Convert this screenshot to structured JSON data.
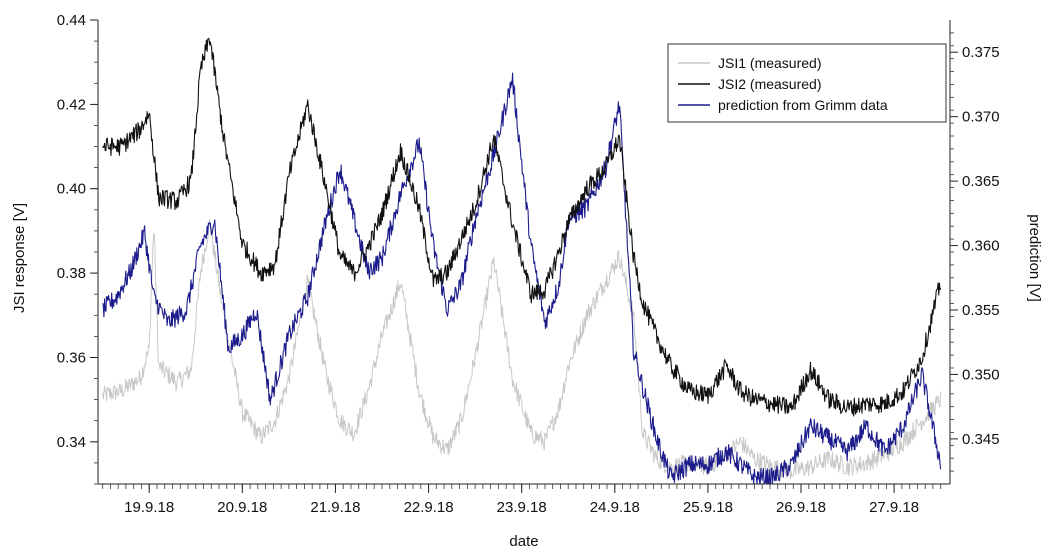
{
  "chart_data": {
    "type": "line",
    "title": "",
    "xlabel": "date",
    "ylabel_left": "JSI response [V]",
    "ylabel_right": "prediction [V]",
    "x_range_days": [
      -0.05,
      9.1
    ],
    "ylim_left": [
      0.33,
      0.44
    ],
    "ylim_right": [
      0.3415,
      0.3775
    ],
    "x_tick_labels": [
      "19.9.18",
      "20.9.18",
      "21.9.18",
      "22.9.18",
      "23.9.18",
      "24.9.18",
      "25.9.18",
      "26.9.18",
      "27.9.18"
    ],
    "y_ticks_left": [
      "0.34",
      "0.36",
      "0.38",
      "0.40",
      "0.42",
      "0.44"
    ],
    "y_ticks_right": [
      "0.345",
      "0.350",
      "0.355",
      "0.360",
      "0.365",
      "0.370",
      "0.375"
    ],
    "legend_position": "top-right",
    "grid": false,
    "series": [
      {
        "name": "JSI1 (measured)",
        "axis": "left",
        "color": "#c8c8c8",
        "x": [
          0.0,
          0.2,
          0.4,
          0.5,
          0.55,
          0.6,
          0.8,
          0.95,
          1.05,
          1.15,
          1.3,
          1.5,
          1.7,
          1.85,
          2.0,
          2.2,
          2.4,
          2.55,
          2.7,
          2.85,
          3.0,
          3.2,
          3.4,
          3.55,
          3.7,
          3.85,
          4.0,
          4.2,
          4.4,
          4.6,
          4.75,
          4.9,
          5.0,
          5.2,
          5.4,
          5.55,
          5.7,
          5.8,
          5.95,
          6.1,
          6.3,
          6.5,
          6.7,
          6.85,
          7.0,
          7.2,
          7.4,
          7.6,
          7.8,
          8.0,
          8.2,
          8.4,
          8.6,
          8.8,
          9.0
        ],
        "y": [
          0.351,
          0.352,
          0.355,
          0.362,
          0.392,
          0.358,
          0.354,
          0.357,
          0.38,
          0.392,
          0.37,
          0.347,
          0.341,
          0.345,
          0.355,
          0.378,
          0.356,
          0.345,
          0.342,
          0.352,
          0.365,
          0.378,
          0.352,
          0.341,
          0.338,
          0.345,
          0.36,
          0.383,
          0.355,
          0.342,
          0.34,
          0.348,
          0.358,
          0.37,
          0.378,
          0.384,
          0.37,
          0.342,
          0.336,
          0.334,
          0.335,
          0.334,
          0.337,
          0.34,
          0.336,
          0.334,
          0.333,
          0.334,
          0.336,
          0.334,
          0.335,
          0.337,
          0.34,
          0.345,
          0.35
        ]
      },
      {
        "name": "JSI2 (measured)",
        "axis": "left",
        "color": "#111111",
        "x": [
          0.0,
          0.2,
          0.4,
          0.5,
          0.6,
          0.8,
          0.95,
          1.05,
          1.15,
          1.3,
          1.5,
          1.7,
          1.85,
          2.0,
          2.2,
          2.4,
          2.55,
          2.7,
          2.85,
          3.0,
          3.2,
          3.4,
          3.55,
          3.7,
          3.85,
          4.0,
          4.2,
          4.4,
          4.6,
          4.75,
          4.9,
          5.0,
          5.2,
          5.4,
          5.55,
          5.7,
          5.8,
          5.95,
          6.1,
          6.3,
          6.5,
          6.7,
          6.85,
          7.0,
          7.2,
          7.4,
          7.6,
          7.8,
          8.0,
          8.2,
          8.4,
          8.6,
          8.8,
          9.0
        ],
        "y": [
          0.41,
          0.41,
          0.414,
          0.418,
          0.398,
          0.397,
          0.402,
          0.428,
          0.436,
          0.412,
          0.387,
          0.38,
          0.382,
          0.403,
          0.42,
          0.4,
          0.384,
          0.38,
          0.386,
          0.394,
          0.409,
          0.395,
          0.378,
          0.38,
          0.388,
          0.396,
          0.412,
          0.392,
          0.375,
          0.376,
          0.385,
          0.392,
          0.4,
          0.405,
          0.412,
          0.384,
          0.373,
          0.365,
          0.358,
          0.352,
          0.351,
          0.358,
          0.352,
          0.35,
          0.349,
          0.348,
          0.357,
          0.35,
          0.348,
          0.349,
          0.349,
          0.352,
          0.36,
          0.378
        ]
      },
      {
        "name": "prediction from Grimm data",
        "axis": "right",
        "color": "#1c1c8c",
        "x": [
          0.0,
          0.15,
          0.3,
          0.45,
          0.55,
          0.7,
          0.9,
          1.05,
          1.2,
          1.35,
          1.5,
          1.65,
          1.8,
          2.0,
          2.2,
          2.4,
          2.55,
          2.7,
          2.85,
          3.0,
          3.2,
          3.4,
          3.55,
          3.7,
          3.85,
          4.0,
          4.2,
          4.4,
          4.6,
          4.75,
          4.9,
          5.0,
          5.2,
          5.4,
          5.55,
          5.7,
          5.8,
          5.95,
          6.1,
          6.3,
          6.5,
          6.7,
          6.85,
          7.0,
          7.2,
          7.4,
          7.6,
          7.8,
          8.0,
          8.2,
          8.4,
          8.6,
          8.8,
          9.0
        ],
        "y": [
          0.355,
          0.356,
          0.358,
          0.361,
          0.356,
          0.354,
          0.355,
          0.36,
          0.362,
          0.352,
          0.353,
          0.355,
          0.348,
          0.353,
          0.356,
          0.362,
          0.366,
          0.362,
          0.358,
          0.359,
          0.364,
          0.368,
          0.36,
          0.355,
          0.357,
          0.362,
          0.367,
          0.373,
          0.36,
          0.354,
          0.357,
          0.362,
          0.363,
          0.366,
          0.371,
          0.352,
          0.349,
          0.345,
          0.342,
          0.343,
          0.343,
          0.344,
          0.343,
          0.342,
          0.342,
          0.343,
          0.346,
          0.345,
          0.344,
          0.346,
          0.344,
          0.346,
          0.35,
          0.343
        ]
      }
    ]
  }
}
